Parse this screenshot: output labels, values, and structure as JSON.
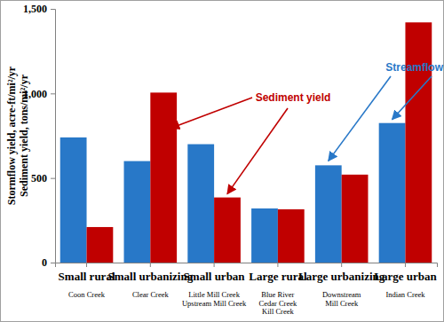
{
  "chart_data": {
    "type": "bar",
    "y_label": [
      "Stormflow yield, acre-ft/mi²/yr",
      "Sediment yield, tons/mi²/yr"
    ],
    "categories": [
      "Small rural",
      "Small urbanizing",
      "Small urban",
      "Large rural",
      "Large urbanizing",
      "Large urban"
    ],
    "category_notes": [
      [
        "Coon Creek"
      ],
      [
        "Clear Creek"
      ],
      [
        "Little Mill Creek",
        "Upstream Mill Creek"
      ],
      [
        "Blue River",
        "Cedar Creek",
        "Kill Creek"
      ],
      [
        "Downstream",
        "Mill Creek"
      ],
      [
        "Indian Creek"
      ]
    ],
    "series": [
      {
        "name": "Streamflow yield",
        "color": "#2878c8",
        "values": [
          740,
          600,
          700,
          320,
          575,
          825
        ]
      },
      {
        "name": "Sediment yield",
        "color": "#c00000",
        "values": [
          210,
          1005,
          385,
          315,
          520,
          1420
        ]
      }
    ],
    "ylim": [
      0,
      1500
    ],
    "yticks": [
      0,
      500,
      {
        "value": 1000,
        "label": "1,000"
      },
      {
        "value": 1500,
        "label": "1,500"
      }
    ],
    "grid": false
  }
}
